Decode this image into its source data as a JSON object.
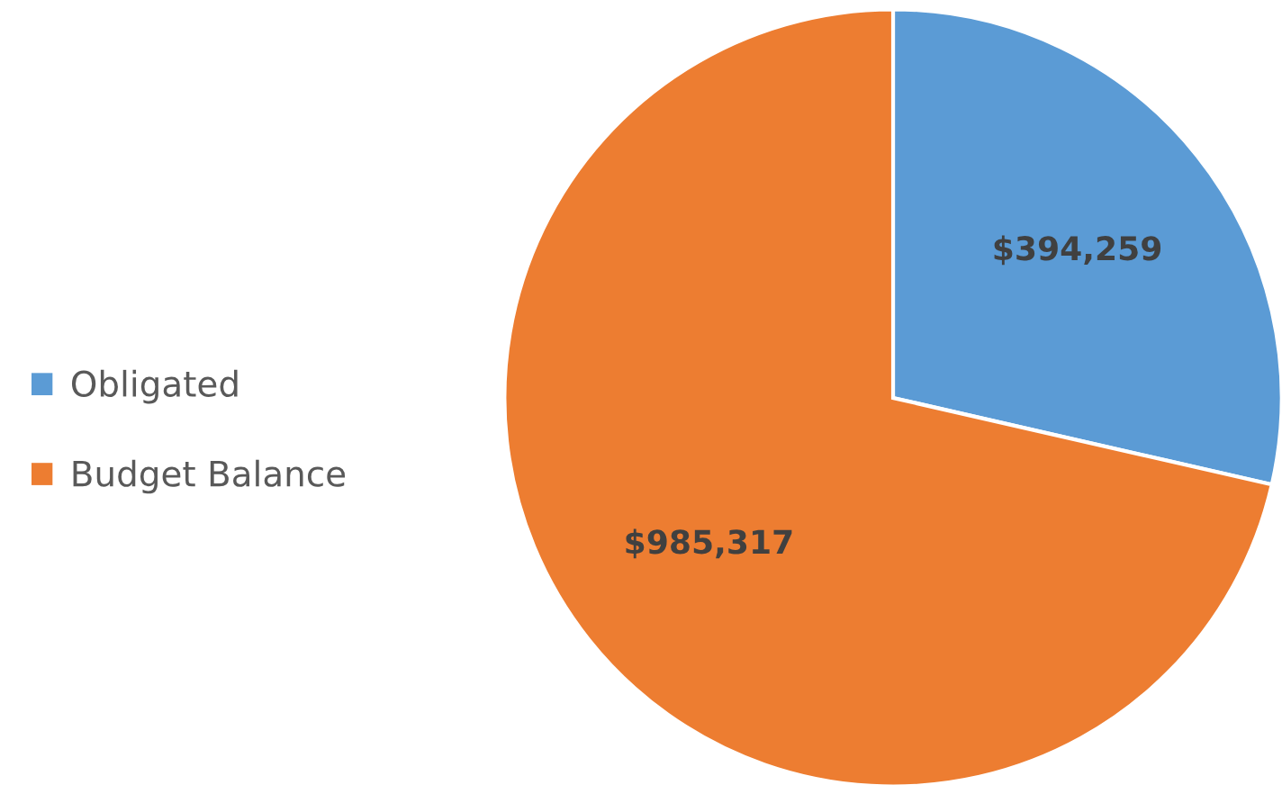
{
  "chart_data": {
    "type": "pie",
    "categories": [
      "Obligated",
      "Budget Balance"
    ],
    "values": [
      394259,
      985317
    ],
    "colors": [
      "#5b9bd5",
      "#ed7d31"
    ],
    "value_labels": [
      "$394,259",
      "$985,317"
    ],
    "legend": "left"
  }
}
